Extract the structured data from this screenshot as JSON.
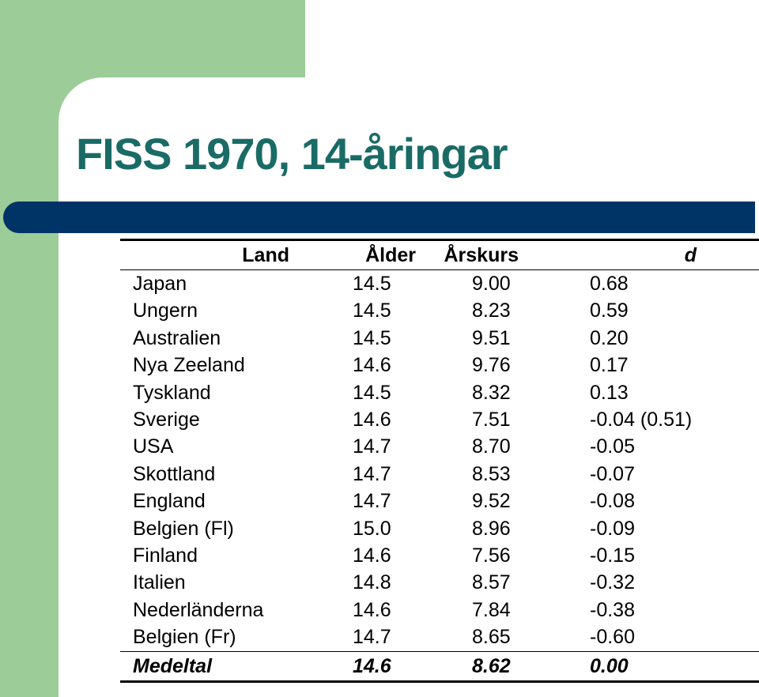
{
  "slide": {
    "title": "FISS 1970, 14-åringar",
    "colors": {
      "green": "#9ccc97",
      "teal_title": "#1a6b66",
      "navy_bar": "#003366"
    }
  },
  "table": {
    "headers": {
      "land": "Land",
      "alder": "Ålder",
      "arskurs": "Årskurs",
      "d": "d"
    },
    "rows": [
      {
        "land": "Japan",
        "alder": "14.5",
        "arskurs": "9.00",
        "d": "0.68"
      },
      {
        "land": "Ungern",
        "alder": "14.5",
        "arskurs": "8.23",
        "d": "0.59"
      },
      {
        "land": "Australien",
        "alder": "14.5",
        "arskurs": "9.51",
        "d": "0.20"
      },
      {
        "land": "Nya Zeeland",
        "alder": "14.6",
        "arskurs": "9.76",
        "d": "0.17"
      },
      {
        "land": "Tyskland",
        "alder": "14.5",
        "arskurs": "8.32",
        "d": "0.13"
      },
      {
        "land": "Sverige",
        "alder": "14.6",
        "arskurs": "7.51",
        "d": "-0.04 (0.51)"
      },
      {
        "land": "USA",
        "alder": "14.7",
        "arskurs": "8.70",
        "d": "-0.05"
      },
      {
        "land": "Skottland",
        "alder": "14.7",
        "arskurs": "8.53",
        "d": "-0.07"
      },
      {
        "land": "England",
        "alder": "14.7",
        "arskurs": "9.52",
        "d": "-0.08"
      },
      {
        "land": "Belgien (Fl)",
        "alder": "15.0",
        "arskurs": "8.96",
        "d": "-0.09"
      },
      {
        "land": "Finland",
        "alder": "14.6",
        "arskurs": "7.56",
        "d": "-0.15"
      },
      {
        "land": "Italien",
        "alder": "14.8",
        "arskurs": "8.57",
        "d": "-0.32"
      },
      {
        "land": "Nederländerna",
        "alder": "14.6",
        "arskurs": "7.84",
        "d": "-0.38"
      },
      {
        "land": "Belgien (Fr)",
        "alder": "14.7",
        "arskurs": "8.65",
        "d": "-0.60"
      }
    ],
    "footer": {
      "land": "Medeltal",
      "alder": "14.6",
      "arskurs": "8.62",
      "d": "0.00"
    }
  }
}
